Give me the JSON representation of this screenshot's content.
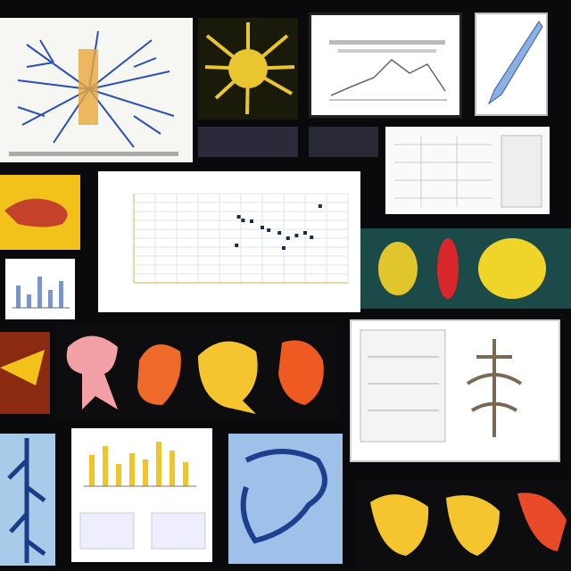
{
  "chart_data": {
    "type": "scatter",
    "title": "",
    "xlabel": "",
    "ylabel": "",
    "xlim": [
      0,
      10
    ],
    "ylim": [
      0,
      10
    ],
    "grid": true,
    "series": [
      {
        "x": [
          4.9,
          5.5,
          6.0,
          6.3,
          6.8,
          7.2,
          7.6,
          8.0,
          8.3,
          5.1,
          7.0,
          8.7,
          4.8
        ],
        "y": [
          7.4,
          6.9,
          6.2,
          5.9,
          5.6,
          5.0,
          5.3,
          5.6,
          5.1,
          7.0,
          3.9,
          8.6,
          4.2
        ]
      }
    ]
  },
  "colors": {
    "background": "#0a0a0c",
    "scatter_points": "#1c2a4a",
    "neuron_blue": "#2a4fb8",
    "jelly_yellow": "#e8c531",
    "organ_orange": "#ef6a2a",
    "organ_pink": "#f3a0a6",
    "bar_yellow": "#f0c52a"
  },
  "icons": [
    "neuron-icon",
    "jellyfish-icon",
    "feather-icon",
    "organ-icon",
    "blob-icon",
    "coral-icon",
    "tree-icon",
    "vessel-icon",
    "structure-icon"
  ]
}
